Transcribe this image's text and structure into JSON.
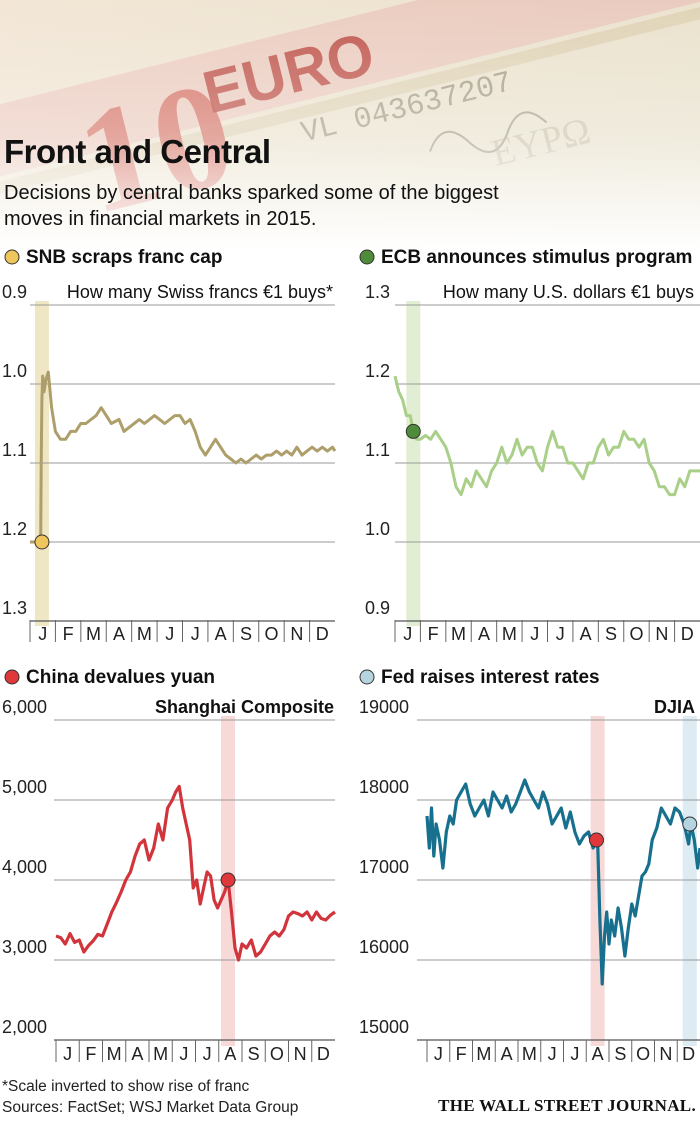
{
  "header": {
    "title": "Front and Central",
    "subtitle": "Decisions by central banks sparked some of the biggest moves in financial markets in 2015."
  },
  "banner": {
    "note_text": "10 EURO"
  },
  "colors": {
    "snb": "#ad9e6a",
    "snb_dot": "#eec65b",
    "snb_band": "#efe7c4",
    "ecb": "#a9cf88",
    "ecb_dot": "#4e8c3a",
    "ecb_band": "#e1eed3",
    "china": "#d2343c",
    "china_dot": "#e0373b",
    "china_band": "#f7d9d7",
    "fed": "#17708e",
    "fed_dot": "#b5d4e0",
    "fed_band": "#dcecf2",
    "fed_band_aug": "#f7d9d7"
  },
  "months": [
    "J",
    "F",
    "M",
    "A",
    "M",
    "J",
    "J",
    "A",
    "S",
    "O",
    "N",
    "D"
  ],
  "chart_data": [
    {
      "id": "snb",
      "type": "line",
      "title": "SNB scraps franc cap",
      "label": "How many Swiss francs €1 buys*",
      "y_ticks": [
        "0.9",
        "1.0",
        "1.1",
        "1.2",
        "1.3"
      ],
      "ylim": [
        0.9,
        1.3
      ],
      "inverted": true,
      "x_range": [
        0,
        12
      ],
      "event_x": 0.47,
      "dot": [
        0.47,
        1.2
      ],
      "x": [
        0.0,
        0.3,
        0.42,
        0.44,
        0.47,
        0.5,
        0.55,
        0.62,
        0.72,
        0.85,
        1.0,
        1.2,
        1.4,
        1.6,
        1.8,
        2.0,
        2.2,
        2.4,
        2.6,
        2.8,
        3.0,
        3.2,
        3.5,
        3.7,
        3.9,
        4.1,
        4.3,
        4.5,
        4.7,
        4.9,
        5.1,
        5.3,
        5.5,
        5.7,
        5.9,
        6.1,
        6.3,
        6.5,
        6.7,
        6.9,
        7.1,
        7.3,
        7.5,
        7.7,
        7.9,
        8.1,
        8.3,
        8.5,
        8.7,
        8.9,
        9.1,
        9.3,
        9.5,
        9.7,
        9.9,
        10.1,
        10.3,
        10.5,
        10.7,
        10.9,
        11.1,
        11.3,
        11.5,
        11.7,
        11.9,
        12.0
      ],
      "values": [
        1.2,
        1.2,
        1.2,
        1.1,
        1.02,
        0.99,
        1.01,
        0.995,
        0.985,
        1.03,
        1.06,
        1.07,
        1.07,
        1.06,
        1.06,
        1.05,
        1.05,
        1.045,
        1.04,
        1.03,
        1.04,
        1.05,
        1.045,
        1.06,
        1.055,
        1.05,
        1.045,
        1.05,
        1.045,
        1.04,
        1.045,
        1.05,
        1.045,
        1.04,
        1.04,
        1.05,
        1.045,
        1.06,
        1.08,
        1.09,
        1.08,
        1.07,
        1.08,
        1.09,
        1.095,
        1.1,
        1.095,
        1.1,
        1.095,
        1.09,
        1.095,
        1.09,
        1.09,
        1.085,
        1.09,
        1.085,
        1.09,
        1.08,
        1.09,
        1.085,
        1.08,
        1.085,
        1.08,
        1.085,
        1.08,
        1.085
      ]
    },
    {
      "id": "ecb",
      "type": "line",
      "title": "ECB announces stimulus program",
      "label": "How many U.S. dollars €1 buys",
      "y_ticks": [
        "1.3",
        "1.2",
        "1.1",
        "1.0",
        "0.9"
      ],
      "ylim": [
        0.9,
        1.3
      ],
      "inverted": false,
      "x_range": [
        0,
        12
      ],
      "event_x": 0.72,
      "dot": [
        0.72,
        1.14
      ],
      "x": [
        0.0,
        0.15,
        0.3,
        0.45,
        0.6,
        0.72,
        0.85,
        1.0,
        1.2,
        1.4,
        1.6,
        1.8,
        2.0,
        2.2,
        2.4,
        2.6,
        2.8,
        3.0,
        3.2,
        3.4,
        3.6,
        3.8,
        4.0,
        4.2,
        4.4,
        4.6,
        4.8,
        5.0,
        5.2,
        5.4,
        5.6,
        5.8,
        6.0,
        6.2,
        6.4,
        6.6,
        6.8,
        7.0,
        7.2,
        7.4,
        7.6,
        7.8,
        8.0,
        8.2,
        8.4,
        8.6,
        8.8,
        9.0,
        9.2,
        9.4,
        9.6,
        9.8,
        10.0,
        10.2,
        10.4,
        10.6,
        10.8,
        11.0,
        11.2,
        11.4,
        11.6,
        11.8,
        12.0
      ],
      "values": [
        1.21,
        1.19,
        1.18,
        1.16,
        1.16,
        1.14,
        1.13,
        1.13,
        1.135,
        1.13,
        1.14,
        1.13,
        1.12,
        1.1,
        1.07,
        1.06,
        1.08,
        1.07,
        1.09,
        1.08,
        1.07,
        1.09,
        1.1,
        1.12,
        1.1,
        1.11,
        1.13,
        1.11,
        1.12,
        1.12,
        1.1,
        1.09,
        1.12,
        1.14,
        1.12,
        1.12,
        1.1,
        1.1,
        1.09,
        1.08,
        1.1,
        1.1,
        1.12,
        1.13,
        1.11,
        1.12,
        1.12,
        1.14,
        1.13,
        1.13,
        1.12,
        1.13,
        1.1,
        1.09,
        1.07,
        1.07,
        1.06,
        1.06,
        1.08,
        1.07,
        1.09,
        1.09,
        1.09
      ]
    },
    {
      "id": "china",
      "type": "line",
      "title": "China devalues yuan",
      "label": "Shanghai Composite",
      "y_ticks": [
        "6,000",
        "5,000",
        "4,000",
        "3,000",
        "2,000"
      ],
      "ylim": [
        2000,
        6000
      ],
      "inverted": false,
      "x_range": [
        0,
        12
      ],
      "event_x": 7.4,
      "dot": [
        7.4,
        4000
      ],
      "x": [
        0.0,
        0.2,
        0.4,
        0.6,
        0.8,
        1.0,
        1.2,
        1.4,
        1.6,
        1.8,
        2.0,
        2.2,
        2.4,
        2.6,
        2.8,
        3.0,
        3.2,
        3.4,
        3.6,
        3.8,
        4.0,
        4.2,
        4.4,
        4.6,
        4.8,
        5.0,
        5.15,
        5.3,
        5.45,
        5.6,
        5.75,
        5.9,
        6.05,
        6.2,
        6.35,
        6.5,
        6.65,
        6.8,
        6.95,
        7.1,
        7.25,
        7.4,
        7.55,
        7.7,
        7.85,
        8.0,
        8.2,
        8.4,
        8.6,
        8.8,
        9.0,
        9.2,
        9.4,
        9.6,
        9.8,
        10.0,
        10.2,
        10.4,
        10.6,
        10.8,
        11.0,
        11.2,
        11.4,
        11.6,
        11.8,
        12.0
      ],
      "values": [
        3300,
        3280,
        3200,
        3330,
        3220,
        3250,
        3100,
        3180,
        3240,
        3320,
        3300,
        3450,
        3600,
        3720,
        3850,
        4000,
        4100,
        4300,
        4450,
        4500,
        4250,
        4400,
        4700,
        4500,
        4900,
        5000,
        5100,
        5170,
        4900,
        4700,
        4500,
        3900,
        4000,
        3700,
        3900,
        4100,
        4050,
        3750,
        3650,
        3750,
        3850,
        4000,
        3600,
        3150,
        3000,
        3200,
        3150,
        3250,
        3050,
        3100,
        3200,
        3300,
        3350,
        3300,
        3380,
        3550,
        3600,
        3580,
        3550,
        3600,
        3500,
        3600,
        3520,
        3500,
        3560,
        3600
      ]
    },
    {
      "id": "fed",
      "type": "line",
      "title": "Fed raises interest rates",
      "label": "DJIA",
      "y_ticks": [
        "19000",
        "18000",
        "17000",
        "16000",
        "15000"
      ],
      "ylim": [
        15000,
        19000
      ],
      "inverted": false,
      "x_range": [
        0,
        12
      ],
      "event_x": 7.5,
      "event_x2": 11.55,
      "dot": [
        7.45,
        17500
      ],
      "dot2": [
        11.55,
        17700
      ],
      "x": [
        0.0,
        0.1,
        0.2,
        0.3,
        0.4,
        0.55,
        0.7,
        0.85,
        1.0,
        1.15,
        1.3,
        1.5,
        1.7,
        1.9,
        2.1,
        2.3,
        2.5,
        2.7,
        2.9,
        3.1,
        3.3,
        3.5,
        3.7,
        3.9,
        4.1,
        4.3,
        4.5,
        4.7,
        4.9,
        5.1,
        5.3,
        5.5,
        5.7,
        5.9,
        6.1,
        6.3,
        6.5,
        6.7,
        6.9,
        7.1,
        7.3,
        7.5,
        7.6,
        7.7,
        7.8,
        7.9,
        8.0,
        8.1,
        8.25,
        8.4,
        8.55,
        8.7,
        8.85,
        9.0,
        9.15,
        9.3,
        9.45,
        9.6,
        9.75,
        9.9,
        10.1,
        10.3,
        10.5,
        10.7,
        10.9,
        11.1,
        11.3,
        11.5,
        11.6,
        11.75,
        11.9,
        12.0
      ],
      "values": [
        17800,
        17400,
        17900,
        17300,
        17700,
        17500,
        17150,
        17600,
        17800,
        17700,
        18000,
        18100,
        18200,
        17950,
        17800,
        17900,
        18000,
        17800,
        18100,
        18000,
        17900,
        18050,
        17850,
        17950,
        18100,
        18250,
        18100,
        18000,
        17900,
        18100,
        17950,
        17700,
        17800,
        17900,
        17650,
        17850,
        17600,
        17450,
        17550,
        17600,
        17400,
        17500,
        16500,
        15700,
        16300,
        16600,
        16200,
        16500,
        16300,
        16650,
        16400,
        16050,
        16400,
        16700,
        16550,
        16800,
        17050,
        17100,
        17200,
        17500,
        17650,
        17900,
        17800,
        17700,
        17900,
        17850,
        17700,
        17450,
        17700,
        17500,
        17150,
        17400
      ]
    }
  ],
  "footer": {
    "footnote": "*Scale inverted to show rise of franc",
    "sources": "Sources: FactSet; WSJ Market Data Group",
    "logo": "THE WALL STREET JOURNAL."
  }
}
